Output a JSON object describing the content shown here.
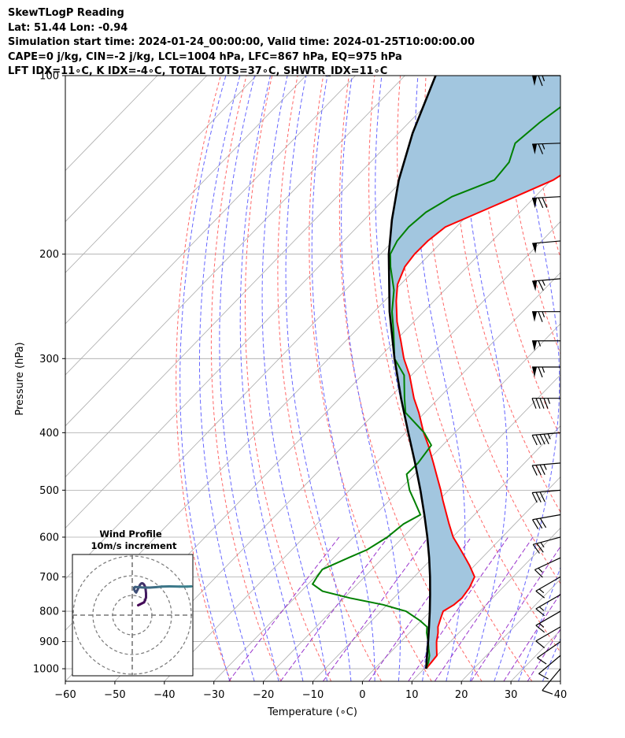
{
  "header": {
    "line1": "SkewTLogP Reading",
    "line2": "Lat: 51.44   Lon: -0.94",
    "line3": "Simulation start time: 2024-01-24_00:00:00, Valid time: 2024-01-25T10:00:00.00",
    "line4": "CAPE=0 j/kg, CIN=-2 j/kg, LCL=1004 hPa, LFC=867 hPa, EQ=975 hPa",
    "line5": "LFT IDX=11∘C, K IDX=-4∘C, TOTAL TOTS=37∘C, SHWTR_IDX=11∘C"
  },
  "colors": {
    "temperature": "#ff0000",
    "dewpoint": "#008000",
    "parcel": "#000000",
    "cape_fill": "#a2c6df",
    "dry_adiabats": "#ff6666",
    "moist_adiabats": "#6666ff",
    "mixing_ratio": "#9933cc",
    "isotherms": "#aaaaaa",
    "isobars": "#aaaaaa"
  },
  "chart_data": {
    "type": "line",
    "title": "",
    "xlabel": "Temperature (∘C)",
    "ylabel": "Pressure (hPa)",
    "x_ticks": [
      -60,
      -50,
      -40,
      -30,
      -20,
      -10,
      0,
      10,
      20,
      30,
      40
    ],
    "x_tick_labels": [
      "−60",
      "−50",
      "−40",
      "−30",
      "−20",
      "−10",
      "0",
      "10",
      "20",
      "30",
      "40"
    ],
    "y_ticks": [
      100,
      200,
      300,
      400,
      500,
      600,
      700,
      800,
      900,
      1000
    ],
    "x_range_bottom": [
      -60,
      40
    ],
    "y_range": [
      1050,
      100
    ],
    "y_scale": "log",
    "skew": "isotherms slanted",
    "grid": true,
    "series": [
      {
        "key": "temperature",
        "p": [
          1000,
          975,
          950,
          925,
          900,
          870,
          850,
          820,
          800,
          780,
          760,
          730,
          700,
          670,
          650,
          620,
          600,
          570,
          550,
          520,
          500,
          470,
          450,
          420,
          400,
          370,
          350,
          320,
          300,
          280,
          260,
          240,
          225,
          210,
          200,
          190,
          180,
          170,
          160,
          150,
          140,
          130,
          120,
          110,
          100
        ],
        "t": [
          10.4,
          10.2,
          10.0,
          8.6,
          7.2,
          5.8,
          4.6,
          3.4,
          2.6,
          3.5,
          3.8,
          3.3,
          2.2,
          -1.0,
          -3.4,
          -7.2,
          -9.9,
          -13.3,
          -15.6,
          -19.2,
          -21.6,
          -25.6,
          -28.4,
          -32.9,
          -36.3,
          -41.2,
          -45.0,
          -50.4,
          -54.8,
          -58.9,
          -63.4,
          -67.6,
          -70.6,
          -72.6,
          -73.1,
          -73.0,
          -72.2,
          -68.2,
          -64.0,
          -59.6,
          -57.5,
          -57.2,
          -56.8,
          -56.8,
          -58.1
        ]
      },
      {
        "key": "dewpoint",
        "p": [
          1000,
          975,
          950,
          925,
          900,
          870,
          850,
          830,
          800,
          780,
          760,
          740,
          720,
          700,
          680,
          650,
          630,
          600,
          570,
          550,
          520,
          500,
          470,
          450,
          420,
          400,
          370,
          350,
          320,
          300,
          270,
          250,
          230,
          210,
          200,
          190,
          180,
          170,
          160,
          150,
          140,
          130,
          120,
          110,
          100
        ],
        "t": [
          10.4,
          9.6,
          8.5,
          7.0,
          5.5,
          3.5,
          2.4,
          -0.2,
          -4.9,
          -10.8,
          -18.8,
          -25.7,
          -29.1,
          -29.6,
          -30.0,
          -27.0,
          -24.8,
          -23.2,
          -22.5,
          -20.9,
          -25.0,
          -27.9,
          -31.6,
          -31.5,
          -32.3,
          -36.2,
          -43.9,
          -46.9,
          -51.5,
          -56.7,
          -62.2,
          -66.4,
          -70.2,
          -75.5,
          -78.0,
          -79.2,
          -79.6,
          -79.0,
          -76.8,
          -71.5,
          -72.0,
          -74.5,
          -73.6,
          -71.9,
          -70.2
        ]
      },
      {
        "key": "parcel",
        "p": [
          1000,
          950,
          900,
          850,
          800,
          750,
          700,
          650,
          600,
          550,
          500,
          450,
          400,
          350,
          300,
          250,
          200,
          175,
          150,
          125,
          100
        ],
        "t": [
          10.4,
          8.0,
          5.5,
          2.8,
          -0.1,
          -3.3,
          -6.8,
          -10.7,
          -15.1,
          -20.1,
          -25.7,
          -32.1,
          -39.4,
          -47.6,
          -56.7,
          -66.9,
          -78.3,
          -84.4,
          -90.8,
          -97.2,
          -103.8
        ]
      }
    ],
    "wind_barbs": [
      {
        "p": 100,
        "dir": 270,
        "speed_kt": 65
      },
      {
        "p": 130,
        "dir": 272,
        "speed_kt": 65
      },
      {
        "p": 160,
        "dir": 273,
        "speed_kt": 70
      },
      {
        "p": 190,
        "dir": 275,
        "speed_kt": 50
      },
      {
        "p": 220,
        "dir": 275,
        "speed_kt": 65
      },
      {
        "p": 250,
        "dir": 270,
        "speed_kt": 65
      },
      {
        "p": 280,
        "dir": 270,
        "speed_kt": 55
      },
      {
        "p": 310,
        "dir": 270,
        "speed_kt": 65
      },
      {
        "p": 350,
        "dir": 270,
        "speed_kt": 45
      },
      {
        "p": 400,
        "dir": 275,
        "speed_kt": 45
      },
      {
        "p": 450,
        "dir": 275,
        "speed_kt": 35
      },
      {
        "p": 500,
        "dir": 275,
        "speed_kt": 30
      },
      {
        "p": 550,
        "dir": 280,
        "speed_kt": 30
      },
      {
        "p": 600,
        "dir": 285,
        "speed_kt": 25
      },
      {
        "p": 650,
        "dir": 295,
        "speed_kt": 15
      },
      {
        "p": 700,
        "dir": 300,
        "speed_kt": 15
      },
      {
        "p": 750,
        "dir": 300,
        "speed_kt": 15
      },
      {
        "p": 800,
        "dir": 300,
        "speed_kt": 15
      },
      {
        "p": 850,
        "dir": 300,
        "speed_kt": 10
      },
      {
        "p": 900,
        "dir": 305,
        "speed_kt": 10
      },
      {
        "p": 950,
        "dir": 310,
        "speed_kt": 10
      },
      {
        "p": 1000,
        "dir": 320,
        "speed_kt": 10
      }
    ]
  },
  "inset": {
    "title_line1": "Wind Profile",
    "title_line2": "10m/s increment",
    "ring_speeds_ms": [
      10,
      20,
      30
    ],
    "hodograph_u_ms": [
      3.0,
      4.0,
      5.0,
      6.0,
      6.5,
      7.0,
      7.0,
      6.8,
      6.5,
      6.0,
      5.5,
      5.0,
      4.5,
      4.0,
      3.5,
      3.0,
      2.5,
      2.0,
      1.5,
      1.0,
      1.0,
      1.5,
      3.0,
      6.0,
      9.0,
      12.0,
      15.0,
      19.0,
      24.0,
      28.0,
      30.0
    ],
    "hodograph_v_ms": [
      5.0,
      5.5,
      6.0,
      6.5,
      7.5,
      9.0,
      11.0,
      13.0,
      14.5,
      15.5,
      16.0,
      16.2,
      16.0,
      15.5,
      14.5,
      13.5,
      12.5,
      11.5,
      12.0,
      13.0,
      14.0,
      14.3,
      14.2,
      14.0,
      14.0,
      14.2,
      14.5,
      14.6,
      14.5,
      14.5,
      14.6
    ]
  }
}
